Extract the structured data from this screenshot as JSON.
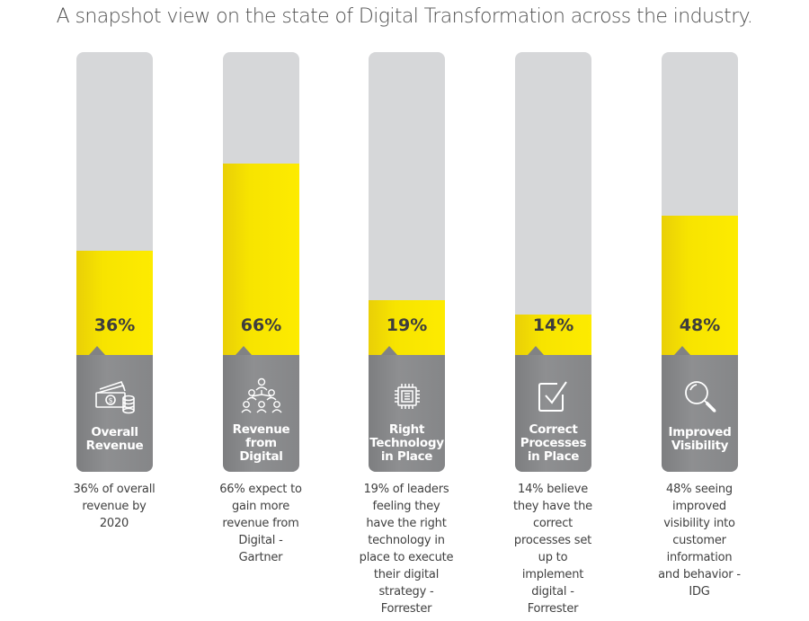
{
  "title": "A snapshot view on the state of Digital Transformation across the industry.",
  "chart_data": {
    "type": "bar",
    "title": "A snapshot view on the state of Digital Transformation across the industry.",
    "xlabel": "",
    "ylabel": "",
    "ylim": [
      0,
      100
    ],
    "grid": false,
    "categories": [
      "Overall Revenue",
      "Revenue from Digital",
      "Right Technology in Place",
      "Correct Processes in Place",
      "Improved Visibility"
    ],
    "values": [
      36,
      66,
      19,
      14,
      48
    ],
    "data_labels": [
      "36%",
      "66%",
      "19%",
      "14%",
      "48%"
    ],
    "colors": {
      "fill": "#f7e400",
      "track": "#d6d7d9",
      "base": "#87888a"
    }
  },
  "bars": [
    {
      "value": 36,
      "pct_label": "36%",
      "icon": "money-icon",
      "label_lines": [
        "Overall",
        "Revenue"
      ],
      "description_lines": [
        "36% of overall",
        "revenue by",
        "2020"
      ]
    },
    {
      "value": 66,
      "pct_label": "66%",
      "icon": "people-network-icon",
      "label_lines": [
        "Revenue",
        "from",
        "Digital"
      ],
      "description_lines": [
        "66% expect to",
        "gain more",
        "revenue from",
        "Digital -",
        "Gartner"
      ]
    },
    {
      "value": 19,
      "pct_label": "19%",
      "icon": "chip-icon",
      "label_lines": [
        "Right",
        "Technology",
        "in Place"
      ],
      "description_lines": [
        "19% of leaders",
        "feeling they",
        "have the right",
        "technology in",
        "place to execute",
        "their digital",
        "strategy -",
        "Forrester"
      ]
    },
    {
      "value": 14,
      "pct_label": "14%",
      "icon": "checkbox-icon",
      "label_lines": [
        "Correct",
        "Processes",
        "in Place"
      ],
      "description_lines": [
        "14% believe",
        "they have the",
        "correct",
        "processes set",
        "up to",
        "implement",
        "digital -",
        "Forrester"
      ]
    },
    {
      "value": 48,
      "pct_label": "48%",
      "icon": "magnifier-icon",
      "label_lines": [
        "Improved",
        "Visibility"
      ],
      "description_lines": [
        "48% seeing",
        "improved",
        "visibility into",
        "customer",
        "information",
        "and behavior -",
        "IDG"
      ]
    }
  ]
}
